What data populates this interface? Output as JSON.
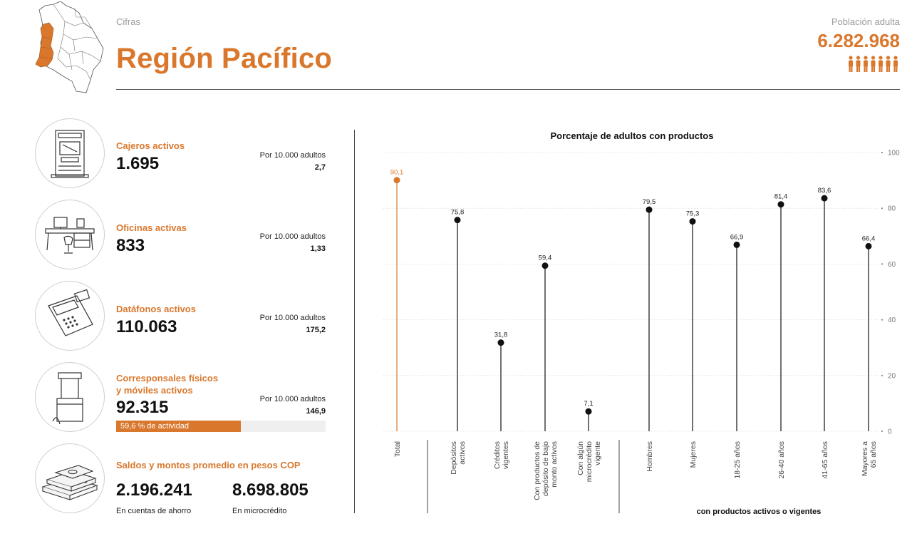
{
  "header": {
    "kicker": "Cifras",
    "title": "Región Pacífico",
    "population_label": "Población adulta",
    "population_value": "6.282.968"
  },
  "colors": {
    "accent": "#d9782d",
    "text": "#111111",
    "muted": "#9a9a9a"
  },
  "icons": [
    "colombia-map-icon",
    "people-icon",
    "atm-icon",
    "office-desk-icon",
    "card-terminal-icon",
    "kiosk-stand-icon",
    "banknotes-icon"
  ],
  "stats": [
    {
      "label": "Cajeros activos",
      "value": "1.695",
      "per_label": "Por 10.000 adultos",
      "per_value": "2,7"
    },
    {
      "label": "Oficinas activas",
      "value": "833",
      "per_label": "Por 10.000 adultos",
      "per_value": "1,33"
    },
    {
      "label": "Datáfonos activos",
      "value": "110.063",
      "per_label": "Por 10.000 adultos",
      "per_value": "175,2"
    },
    {
      "label_line1": "Corresponsales físicos",
      "label_line2": "y móviles activos",
      "value": "92.315",
      "per_label": "Por 10.000 adultos",
      "per_value": "146,9",
      "activity_text": "59,6 % de actividad",
      "activity_percent": 59.6
    }
  ],
  "balances": {
    "label": "Saldos y montos promedio en pesos COP",
    "savings_value": "2.196.241",
    "savings_label": "En cuentas de ahorro",
    "microcredit_value": "8.698.805",
    "microcredit_label": "En microcrédito"
  },
  "chart_data": {
    "type": "lollipop",
    "title": "Porcentaje de adultos con productos",
    "group_label": "con productos activos o vigentes",
    "categories": [
      [
        "Total"
      ],
      [
        "Depósitos",
        "activos"
      ],
      [
        "Créditos",
        "vigentes"
      ],
      [
        "Con productos de",
        "depósito de bajo",
        "monto activos"
      ],
      [
        "Con algún",
        "microcrédito",
        "vigente"
      ],
      [
        "Hombres"
      ],
      [
        "Mujeres"
      ],
      [
        "18-25 años"
      ],
      [
        "26-40 años"
      ],
      [
        "41-65 años"
      ],
      [
        "Mayores a",
        "65 años"
      ]
    ],
    "values": [
      90.1,
      75.8,
      31.8,
      59.4,
      7.1,
      79.5,
      75.3,
      66.9,
      81.4,
      83.6,
      66.4
    ],
    "value_labels": [
      "90,1",
      "75,8",
      "31,8",
      "59,4",
      "7,1",
      "79,5",
      "75,3",
      "66,9",
      "81,4",
      "83,6",
      "66,4"
    ],
    "highlight_index": 0,
    "highlight_color": "#d9782d",
    "ylim": [
      0,
      100
    ],
    "yticks": [
      "0",
      "20",
      "40",
      "60",
      "80",
      "100"
    ],
    "grid": true
  }
}
